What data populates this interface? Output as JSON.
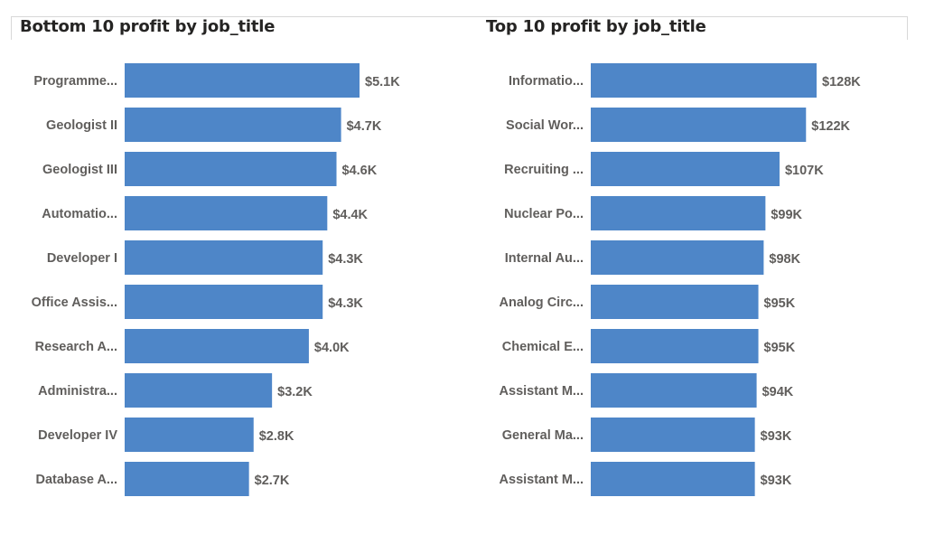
{
  "chart_data": [
    {
      "type": "bar",
      "orientation": "horizontal",
      "title": "Bottom 10 profit by job_title",
      "categories": [
        "Programme...",
        "Geologist II",
        "Geologist III",
        "Automatio...",
        "Developer I",
        "Office Assis...",
        "Research A...",
        "Administra...",
        "Developer IV",
        "Database A..."
      ],
      "values": [
        5.1,
        4.7,
        4.6,
        4.4,
        4.3,
        4.3,
        4.0,
        3.2,
        2.8,
        2.7
      ],
      "value_labels": [
        "$5.1K",
        "$4.7K",
        "$4.6K",
        "$4.4K",
        "$4.3K",
        "$4.3K",
        "$4.0K",
        "$3.2K",
        "$2.8K",
        "$2.7K"
      ],
      "value_unit": "$K",
      "xlim": [
        0,
        5.1
      ],
      "grid": false,
      "bar_color": "#4e86c8"
    },
    {
      "type": "bar",
      "orientation": "horizontal",
      "title": "Top 10 profit by job_title",
      "categories": [
        "Informatio...",
        "Social Wor...",
        "Recruiting ...",
        "Nuclear Po...",
        "Internal Au...",
        "Analog Circ...",
        "Chemical E...",
        "Assistant M...",
        "General Ma...",
        "Assistant M..."
      ],
      "values": [
        128,
        122,
        107,
        99,
        98,
        95,
        95,
        94,
        93,
        93
      ],
      "value_labels": [
        "$128K",
        "$122K",
        "$107K",
        "$99K",
        "$98K",
        "$95K",
        "$95K",
        "$94K",
        "$93K",
        "$93K"
      ],
      "value_unit": "$K",
      "xlim": [
        0,
        128
      ],
      "grid": false,
      "bar_color": "#4e86c8"
    }
  ]
}
